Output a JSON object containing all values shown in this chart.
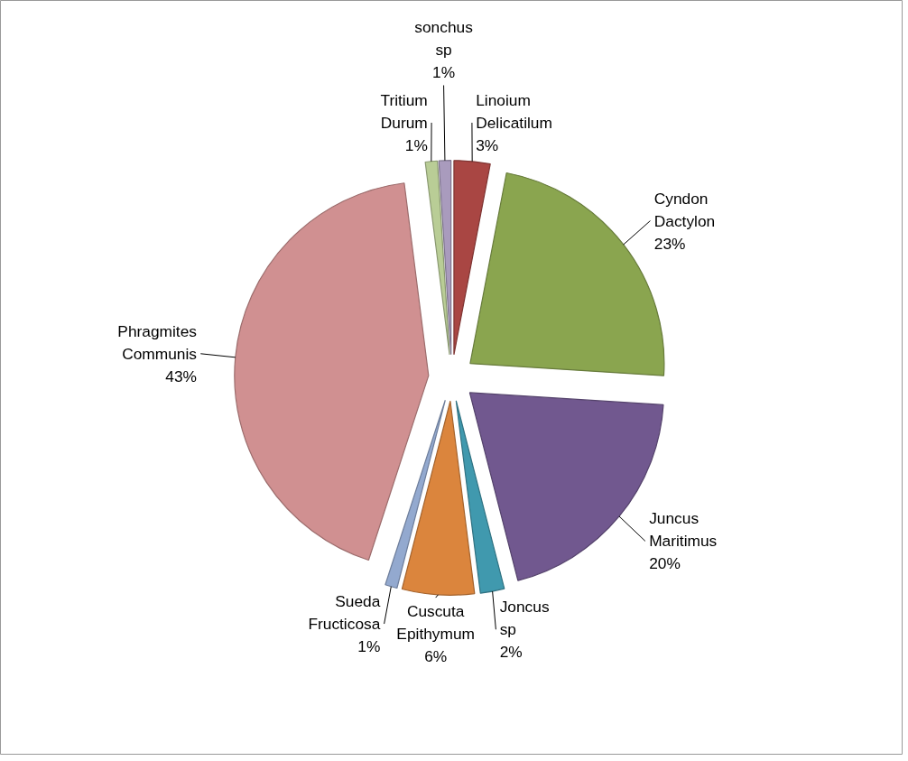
{
  "chart_data": {
    "type": "pie",
    "categories": [
      "Linoium Delicatilum",
      "Cyndon Dactylon",
      "Juncus Maritimus",
      "Joncus sp",
      "Cuscuta Epithymum",
      "Sueda Fructicosa",
      "Phragmites Communis",
      "Tritium Durum",
      "sonchus sp"
    ],
    "values": [
      3,
      23,
      20,
      2,
      6,
      1,
      43,
      1,
      1
    ],
    "value_labels": [
      "3%",
      "23%",
      "20%",
      "2%",
      "6%",
      "1%",
      "43%",
      "1%",
      "1%"
    ],
    "colors": [
      "#a94643",
      "#8aa54f",
      "#71588f",
      "#4099ae",
      "#db853d",
      "#93a9cf",
      "#d09091",
      "#b9cd96",
      "#a99bbd"
    ]
  }
}
